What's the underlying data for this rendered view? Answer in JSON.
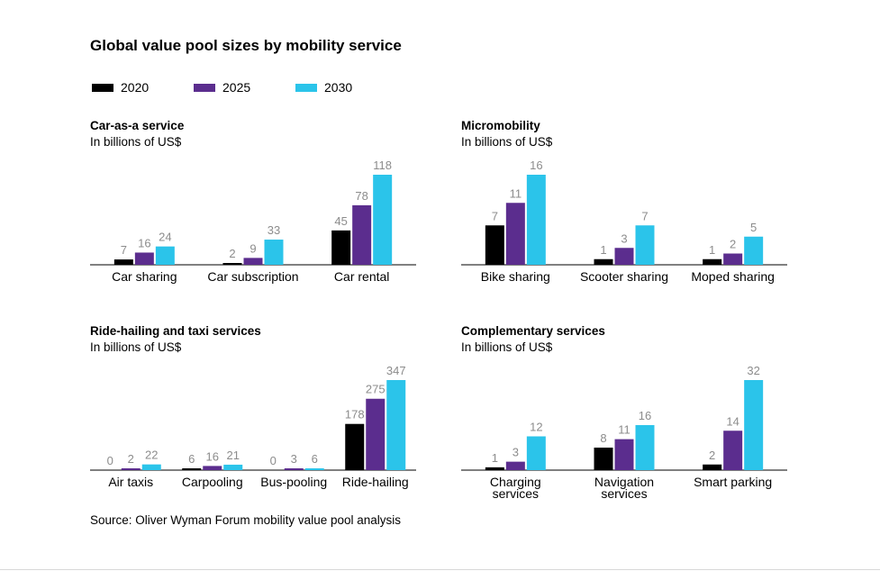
{
  "title": "Global value pool sizes by mobility service",
  "legend": {
    "items": [
      {
        "label": "2020",
        "color": "#000000"
      },
      {
        "label": "2025",
        "color": "#5b2d8e"
      },
      {
        "label": "2030",
        "color": "#2bc4ea"
      }
    ]
  },
  "source": "Source: Oliver Wyman Forum mobility value pool analysis",
  "chart_data": [
    {
      "type": "bar",
      "title": "Car-as-a service",
      "subtitle": "In billions of US$",
      "categories": [
        [
          "Car sharing"
        ],
        [
          "Car subscription"
        ],
        [
          "Car rental"
        ]
      ],
      "series": [
        {
          "name": "2020",
          "values": [
            7,
            2,
            45
          ]
        },
        {
          "name": "2025",
          "values": [
            16,
            9,
            78
          ]
        },
        {
          "name": "2030",
          "values": [
            24,
            33,
            118
          ]
        }
      ]
    },
    {
      "type": "bar",
      "title": "Micromobility",
      "subtitle": "In billions of US$",
      "categories": [
        [
          "Bike sharing"
        ],
        [
          "Scooter sharing"
        ],
        [
          "Moped sharing"
        ]
      ],
      "series": [
        {
          "name": "2020",
          "values": [
            7,
            1,
            1
          ]
        },
        {
          "name": "2025",
          "values": [
            11,
            3,
            2
          ]
        },
        {
          "name": "2030",
          "values": [
            16,
            7,
            5
          ]
        }
      ]
    },
    {
      "type": "bar",
      "title": "Ride-hailing and taxi services",
      "subtitle": "In billions of US$",
      "categories": [
        [
          "Air taxis"
        ],
        [
          "Carpooling"
        ],
        [
          "Bus-pooling"
        ],
        [
          "Ride-hailing"
        ]
      ],
      "series": [
        {
          "name": "2020",
          "values": [
            0,
            6,
            0,
            178
          ]
        },
        {
          "name": "2025",
          "values": [
            2,
            16,
            3,
            275
          ]
        },
        {
          "name": "2030",
          "values": [
            22,
            21,
            6,
            347
          ]
        }
      ]
    },
    {
      "type": "bar",
      "title": "Complementary services",
      "subtitle": "In billions of US$",
      "categories": [
        [
          "Charging",
          "services"
        ],
        [
          "Navigation",
          "services"
        ],
        [
          "Smart parking"
        ]
      ],
      "series": [
        {
          "name": "2020",
          "values": [
            1,
            8,
            2
          ]
        },
        {
          "name": "2025",
          "values": [
            3,
            11,
            14
          ]
        },
        {
          "name": "2030",
          "values": [
            12,
            16,
            32
          ]
        }
      ]
    }
  ]
}
